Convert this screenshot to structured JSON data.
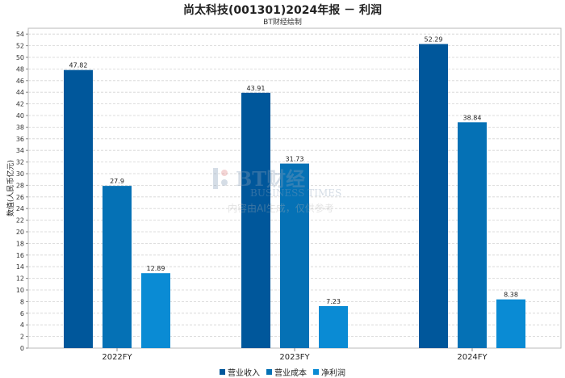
{
  "title": "尚太科技(001301)2024年报 － 利润",
  "subtitle": "BT财经绘制",
  "watermark": {
    "brand": "BT财经",
    "brand_en": "BUSINESS TIMES",
    "note": "内容由AI生成，仅供参考"
  },
  "chart_data": {
    "type": "bar",
    "title": "尚太科技(001301)2024年报 － 利润",
    "subtitle": "BT财经绘制",
    "ylabel": "数值(人民币亿元)",
    "xlabel": "",
    "categories": [
      "2022FY",
      "2023FY",
      "2024FY"
    ],
    "ylim": [
      0,
      55
    ],
    "ytick_step": 2,
    "grid": true,
    "legend_position": "bottom",
    "series": [
      {
        "name": "营业收入",
        "color": "#00579b",
        "values": [
          47.82,
          43.91,
          52.29
        ]
      },
      {
        "name": "营业成本",
        "color": "#0571b5",
        "values": [
          27.9,
          31.73,
          38.84
        ]
      },
      {
        "name": "净利润",
        "color": "#0a8bd4",
        "values": [
          12.89,
          7.23,
          8.38
        ]
      }
    ]
  }
}
